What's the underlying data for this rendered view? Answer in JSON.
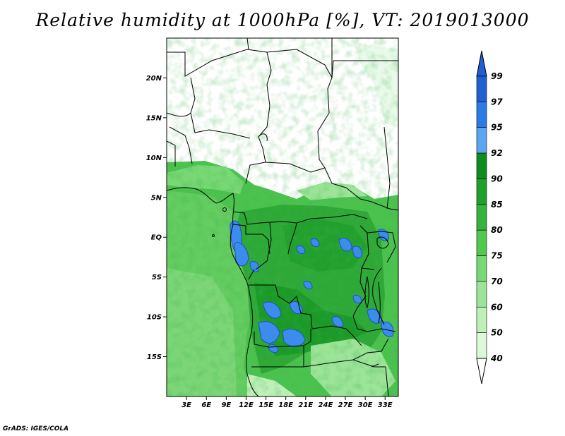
{
  "title": "Relative humidity at 1000hPa [%], VT: 2019013000",
  "credit": "GrADS: IGES/COLA",
  "map": {
    "lon_range": [
      0,
      35
    ],
    "lat_range": [
      -20,
      25
    ],
    "lat_ticks": [
      {
        "value": 20,
        "label": "20N"
      },
      {
        "value": 15,
        "label": "15N"
      },
      {
        "value": 10,
        "label": "10N"
      },
      {
        "value": 5,
        "label": "5N"
      },
      {
        "value": 0,
        "label": "EQ"
      },
      {
        "value": -5,
        "label": "5S"
      },
      {
        "value": -10,
        "label": "10S"
      },
      {
        "value": -15,
        "label": "15S"
      }
    ],
    "lon_ticks": [
      {
        "value": 3,
        "label": "3E"
      },
      {
        "value": 6,
        "label": "6E"
      },
      {
        "value": 9,
        "label": "9E"
      },
      {
        "value": 12,
        "label": "12E"
      },
      {
        "value": 15,
        "label": "15E"
      },
      {
        "value": 18,
        "label": "18E"
      },
      {
        "value": 21,
        "label": "21E"
      },
      {
        "value": 24,
        "label": "24E"
      },
      {
        "value": 27,
        "label": "27E"
      },
      {
        "value": 30,
        "label": "30E"
      },
      {
        "value": 33,
        "label": "33E"
      }
    ]
  },
  "colorbar": {
    "levels": [
      {
        "label": "99",
        "color": "#1f5fd0"
      },
      {
        "label": "97",
        "color": "#2b7be6"
      },
      {
        "label": "95",
        "color": "#5aa6f0"
      },
      {
        "label": "92",
        "color": "#0f8c1e"
      },
      {
        "label": "90",
        "color": "#1ea02c"
      },
      {
        "label": "85",
        "color": "#34b43c"
      },
      {
        "label": "80",
        "color": "#50c850"
      },
      {
        "label": "75",
        "color": "#78d874"
      },
      {
        "label": "70",
        "color": "#9ce498"
      },
      {
        "label": "60",
        "color": "#bef0b8"
      },
      {
        "label": "50",
        "color": "#dcf8d8"
      },
      {
        "label": "40",
        "color": "#f0fcf0"
      }
    ],
    "top_color": "#1f5fd0",
    "bottom_color": "#ffffff"
  }
}
